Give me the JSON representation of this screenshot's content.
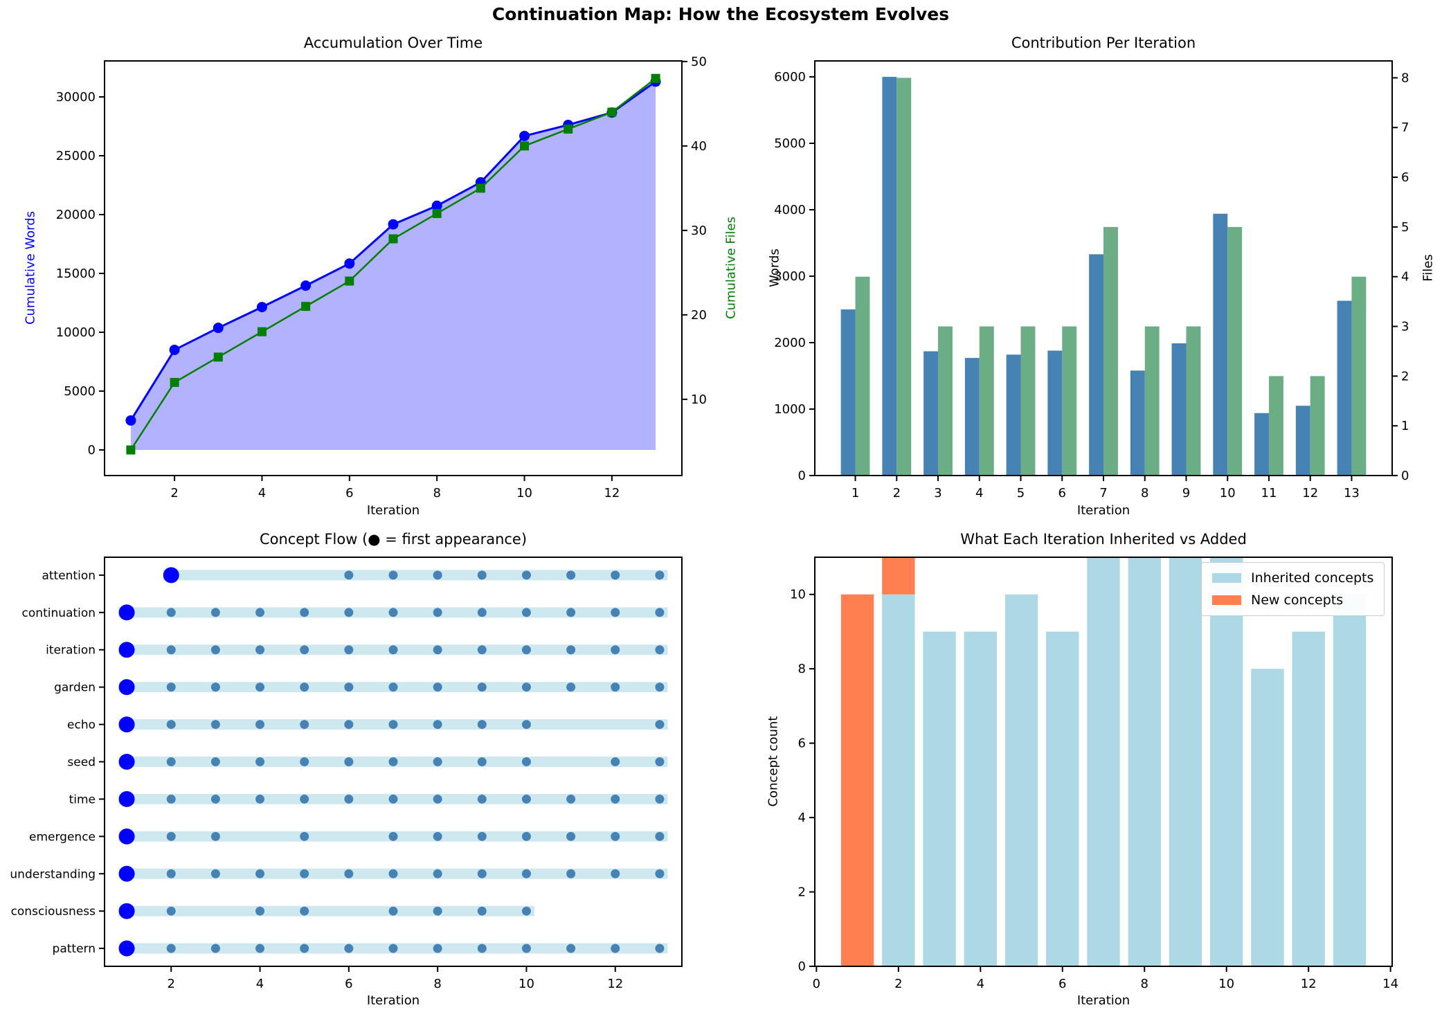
{
  "figure": {
    "title": "Continuation Map: How the Ecosystem Evolves",
    "background": "#ffffff"
  },
  "chart_data": [
    {
      "id": "accumulation",
      "type": "line",
      "title": "Accumulation Over Time",
      "xlabel": "Iteration",
      "ylabel_left": "Cumulative Words",
      "ylabel_right": "Cumulative Files",
      "left_label_color": "#0000ff",
      "right_label_color": "#008000",
      "x": [
        1,
        2,
        3,
        4,
        5,
        6,
        7,
        8,
        9,
        10,
        11,
        12,
        13
      ],
      "series": [
        {
          "name": "Cumulative Words",
          "axis": "left",
          "color": "#0000ff",
          "marker": "circle",
          "area_fill": "rgba(0,0,255,0.3)",
          "values": [
            2500,
            8500,
            10370,
            12140,
            13960,
            15840,
            19170,
            20750,
            22740,
            26680,
            27620,
            28670,
            31300
          ]
        },
        {
          "name": "Cumulative Files",
          "axis": "right",
          "color": "#008000",
          "marker": "square",
          "values": [
            4,
            12,
            15,
            18,
            21,
            24,
            29,
            32,
            35,
            40,
            42,
            44,
            48
          ]
        }
      ],
      "xlim": [
        0.4,
        13.6
      ],
      "xticks": [
        2,
        4,
        6,
        8,
        10,
        12
      ],
      "ylim_left": [
        -2180,
        33060
      ],
      "yticks_left": [
        0,
        5000,
        10000,
        15000,
        20000,
        25000,
        30000
      ],
      "ylim_right": [
        0.97,
        50.07
      ],
      "yticks_right": [
        10,
        20,
        30,
        40,
        50
      ],
      "grid": false
    },
    {
      "id": "contribution",
      "type": "grouped-bar",
      "title": "Contribution Per Iteration",
      "xlabel": "Iteration",
      "ylabel_left": "Words",
      "ylabel_right": "Files",
      "categories": [
        1,
        2,
        3,
        4,
        5,
        6,
        7,
        8,
        9,
        10,
        11,
        12,
        13
      ],
      "series": [
        {
          "name": "Words",
          "axis": "left",
          "color": "#4682B4",
          "values": [
            2500,
            6000,
            1870,
            1770,
            1820,
            1880,
            3330,
            1580,
            1990,
            3940,
            940,
            1050,
            2630
          ]
        },
        {
          "name": "Files",
          "axis": "right",
          "color": "#6BAD85",
          "values": [
            4,
            8,
            3,
            3,
            3,
            3,
            5,
            3,
            3,
            5,
            2,
            2,
            4
          ]
        }
      ],
      "bar_width": 0.35,
      "xlim": [
        0.02,
        13.98
      ],
      "xticks": [
        1,
        2,
        3,
        4,
        5,
        6,
        7,
        8,
        9,
        10,
        11,
        12,
        13
      ],
      "ylim_left": [
        0,
        6240
      ],
      "yticks_left": [
        0,
        1000,
        2000,
        3000,
        4000,
        5000,
        6000
      ],
      "ylim_right": [
        0,
        8.34
      ],
      "yticks_right": [
        0,
        1,
        2,
        3,
        4,
        5,
        6,
        7,
        8
      ],
      "grid": false
    },
    {
      "id": "concept_flow",
      "type": "dot-timeline",
      "title": "Concept Flow (● = first appearance)",
      "xlabel": "Iteration",
      "band_color": "rgba(173,216,230,0.6)",
      "dot_color": "#4682B4",
      "first_dot_color": "#0000ff",
      "xlim": [
        0.5,
        13.5
      ],
      "xticks": [
        2,
        4,
        6,
        8,
        10,
        12
      ],
      "concepts": [
        {
          "name": "attention",
          "first": 2,
          "appearances": [
            2,
            6,
            7,
            8,
            9,
            10,
            11,
            12,
            13
          ]
        },
        {
          "name": "continuation",
          "first": 1,
          "appearances": [
            1,
            2,
            3,
            4,
            5,
            6,
            7,
            8,
            9,
            10,
            11,
            12,
            13
          ]
        },
        {
          "name": "iteration",
          "first": 1,
          "appearances": [
            1,
            2,
            3,
            4,
            5,
            6,
            7,
            8,
            9,
            10,
            11,
            12,
            13
          ]
        },
        {
          "name": "garden",
          "first": 1,
          "appearances": [
            1,
            2,
            3,
            4,
            5,
            6,
            7,
            8,
            9,
            10,
            11,
            12,
            13
          ]
        },
        {
          "name": "echo",
          "first": 1,
          "appearances": [
            1,
            2,
            3,
            4,
            5,
            6,
            7,
            8,
            9,
            10,
            13
          ]
        },
        {
          "name": "seed",
          "first": 1,
          "appearances": [
            1,
            2,
            3,
            4,
            5,
            6,
            7,
            8,
            9,
            10,
            12,
            13
          ]
        },
        {
          "name": "time",
          "first": 1,
          "appearances": [
            1,
            2,
            3,
            4,
            5,
            6,
            7,
            8,
            9,
            10,
            11,
            12,
            13
          ]
        },
        {
          "name": "emergence",
          "first": 1,
          "appearances": [
            1,
            2,
            3,
            5,
            7,
            8,
            9,
            10,
            11,
            12,
            13
          ]
        },
        {
          "name": "understanding",
          "first": 1,
          "appearances": [
            1,
            2,
            3,
            4,
            5,
            6,
            7,
            8,
            9,
            10,
            11,
            12,
            13
          ]
        },
        {
          "name": "consciousness",
          "first": 1,
          "appearances": [
            1,
            2,
            4,
            5,
            7,
            8,
            9,
            10
          ]
        },
        {
          "name": "pattern",
          "first": 1,
          "appearances": [
            1,
            2,
            3,
            4,
            5,
            6,
            7,
            8,
            9,
            10,
            11,
            12,
            13
          ]
        }
      ],
      "grid": false
    },
    {
      "id": "inherited_vs_added",
      "type": "stacked-bar",
      "title": "What Each Iteration Inherited vs Added",
      "xlabel": "Iteration",
      "ylabel_left": "Concept count",
      "x": [
        1,
        2,
        3,
        4,
        5,
        6,
        7,
        8,
        9,
        10,
        11,
        12,
        13
      ],
      "bar_width": 0.8,
      "series": [
        {
          "name": "Inherited concepts",
          "color": "#ADD8E6",
          "values": [
            0,
            10,
            9,
            9,
            10,
            9,
            11,
            11,
            11,
            11,
            8,
            9,
            10
          ]
        },
        {
          "name": "New concepts",
          "color": "#FF7F50",
          "values": [
            10,
            1,
            0,
            0,
            0,
            0,
            0,
            0,
            0,
            0,
            0,
            0,
            0
          ]
        }
      ],
      "xlim": [
        -0.04,
        14.04
      ],
      "xticks": [
        0,
        2,
        4,
        6,
        8,
        10,
        12,
        14
      ],
      "ylim_left": [
        0,
        11
      ],
      "yticks_left": [
        0,
        2,
        4,
        6,
        8,
        10
      ],
      "legend_position": "upper-right",
      "grid": false
    }
  ]
}
